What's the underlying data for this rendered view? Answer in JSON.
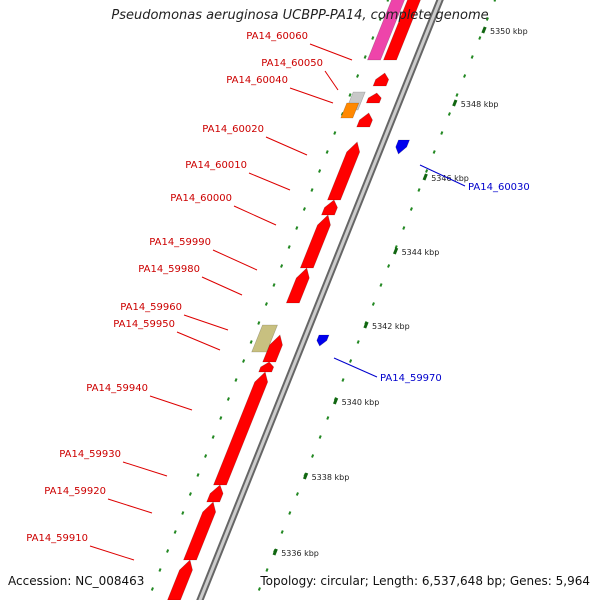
{
  "title": "Pseudomonas aeruginosa UCBPP-PA14, complete genome",
  "footer": {
    "accession": "Accession: NC_008463",
    "topology": "Topology: circular; Length: 6,537,648 bp; Genes: 5,964"
  },
  "colors": {
    "forward_gene": "#ff0000",
    "reverse_gene": "#0000ee",
    "pink_gene": "#ee44aa",
    "gray_gene": "#c8c8c8",
    "orange_gene": "#ff8800",
    "khaki_gene": "#c8c080",
    "backbone": "#999999",
    "tick": "#228822"
  },
  "scale_labels": [
    "5350 kbp",
    "5348 kbp",
    "5346 kbp",
    "5344 kbp",
    "5342 kbp",
    "5340 kbp",
    "5338 kbp",
    "5336 kbp"
  ],
  "forward_labels": [
    "PA14_60060",
    "PA14_60050",
    "PA14_60040",
    "PA14_60020",
    "PA14_60010",
    "PA14_60000",
    "PA14_59990",
    "PA14_59980",
    "PA14_59960",
    "PA14_59950",
    "PA14_59940",
    "PA14_59930",
    "PA14_59920",
    "PA14_59910"
  ],
  "reverse_labels": [
    "PA14_60030",
    "PA14_59970"
  ]
}
